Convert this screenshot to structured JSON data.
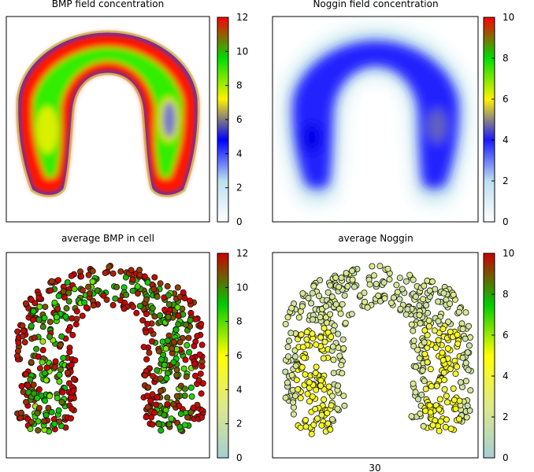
{
  "chart_data": [
    {
      "type": "heatmap",
      "title": "BMP field concentration",
      "colorbar": {
        "min": 0,
        "max": 12,
        "ticks": [
          0,
          2,
          4,
          6,
          8,
          10,
          12
        ],
        "stops": [
          "#ffffff",
          "#bcdff0",
          "#0000ff",
          "#fff200",
          "#00dd00",
          "#ff0000"
        ]
      },
      "field": {
        "shape": "horseshoe",
        "rim_value": 11.5,
        "interior_value": 9.5,
        "hotspots": [
          {
            "side": "left",
            "value": 7.5
          },
          {
            "side": "right",
            "value": 5.5
          }
        ]
      }
    },
    {
      "type": "heatmap",
      "title": "Noggin field concentration",
      "colorbar": {
        "min": 0,
        "max": 10,
        "ticks": [
          0,
          2,
          4,
          6,
          8,
          10
        ],
        "stops": [
          "#ffffff",
          "#bcdff0",
          "#1a1aff",
          "#fff200",
          "#00dd00",
          "#ff0000"
        ]
      },
      "field": {
        "shape": "horseshoe",
        "edge_value": 1,
        "body_value": 3.5,
        "hotspots": [
          {
            "side": "left",
            "value": 4
          },
          {
            "side": "right",
            "value": 5
          }
        ]
      }
    },
    {
      "type": "scatter",
      "title": "average BMP in cell",
      "colorbar": {
        "min": 0,
        "max": 12,
        "ticks": [
          0,
          2,
          4,
          6,
          8,
          10,
          12
        ],
        "stops": [
          "#a5cfd4",
          "#dde98a",
          "#ffff00",
          "#00cc00",
          "#cc0000"
        ]
      },
      "cells": {
        "shape": "horseshoe",
        "value_range": [
          5,
          12
        ]
      }
    },
    {
      "type": "scatter",
      "title": "average Noggin",
      "colorbar": {
        "min": 0,
        "max": 10,
        "ticks": [
          0,
          2,
          4,
          6,
          8,
          10
        ],
        "stops": [
          "#a5cfd4",
          "#dde98a",
          "#ffff00",
          "#00cc00",
          "#cc0000"
        ]
      },
      "cells": {
        "shape": "horseshoe",
        "value_range": [
          1.5,
          4.5
        ]
      }
    }
  ],
  "footer_label": "30"
}
